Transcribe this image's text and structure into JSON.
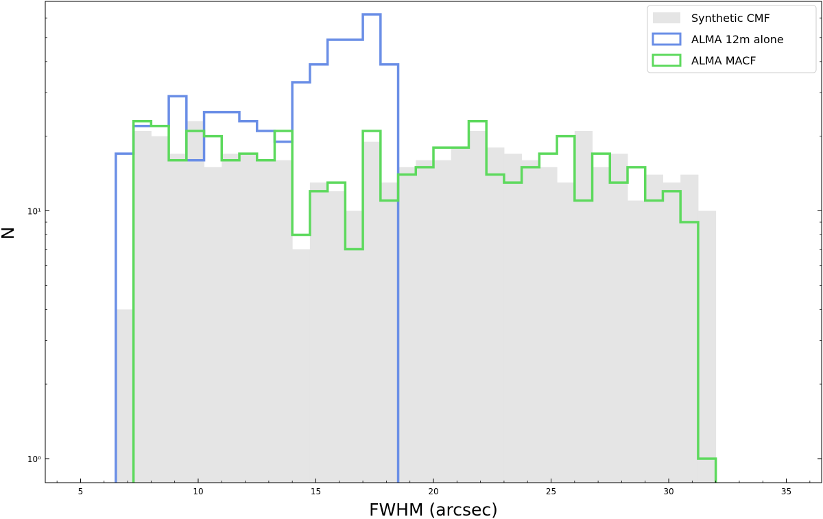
{
  "chart_data": {
    "type": "histogram",
    "xlabel": "FWHM (arcsec)",
    "ylabel": "N",
    "xlim": [
      3.5,
      36.5
    ],
    "ylim": [
      0.8,
      70
    ],
    "yscale": "log",
    "xticks": [
      5,
      10,
      15,
      20,
      25,
      30,
      35
    ],
    "yticks": [
      {
        "value": 1,
        "label": "10⁰"
      },
      {
        "value": 10,
        "label": "10¹"
      }
    ],
    "grid": false,
    "legend_position": "top-right",
    "bin_width": 0.75,
    "series": [
      {
        "name": "Synthetic CMF",
        "style": "filled",
        "color": "#e5e5e5",
        "bin_start": 6.5,
        "values": [
          4,
          21,
          20,
          17,
          23,
          15,
          17,
          17,
          16,
          16,
          7,
          13,
          12,
          10,
          19,
          13,
          15,
          16,
          16,
          18,
          21,
          18,
          17,
          16,
          15,
          13,
          21,
          15,
          17,
          11,
          14,
          13,
          14,
          10
        ]
      },
      {
        "name": "ALMA 12m alone",
        "style": "step",
        "color": "#6a8ee6",
        "bin_start": 6.5,
        "values": [
          17,
          22,
          22,
          29,
          16,
          25,
          25,
          23,
          21,
          19,
          33,
          39,
          49,
          49,
          62,
          39
        ]
      },
      {
        "name": "ALMA MACF",
        "style": "step",
        "color": "#5dd95d",
        "bin_start": 7.25,
        "values": [
          23,
          22,
          16,
          21,
          20,
          16,
          17,
          16,
          21,
          8,
          12,
          13,
          7,
          21,
          11,
          14,
          15,
          18,
          18,
          23,
          14,
          13,
          15,
          17,
          20,
          11,
          17,
          13,
          15,
          11,
          12,
          9,
          1
        ]
      }
    ]
  }
}
